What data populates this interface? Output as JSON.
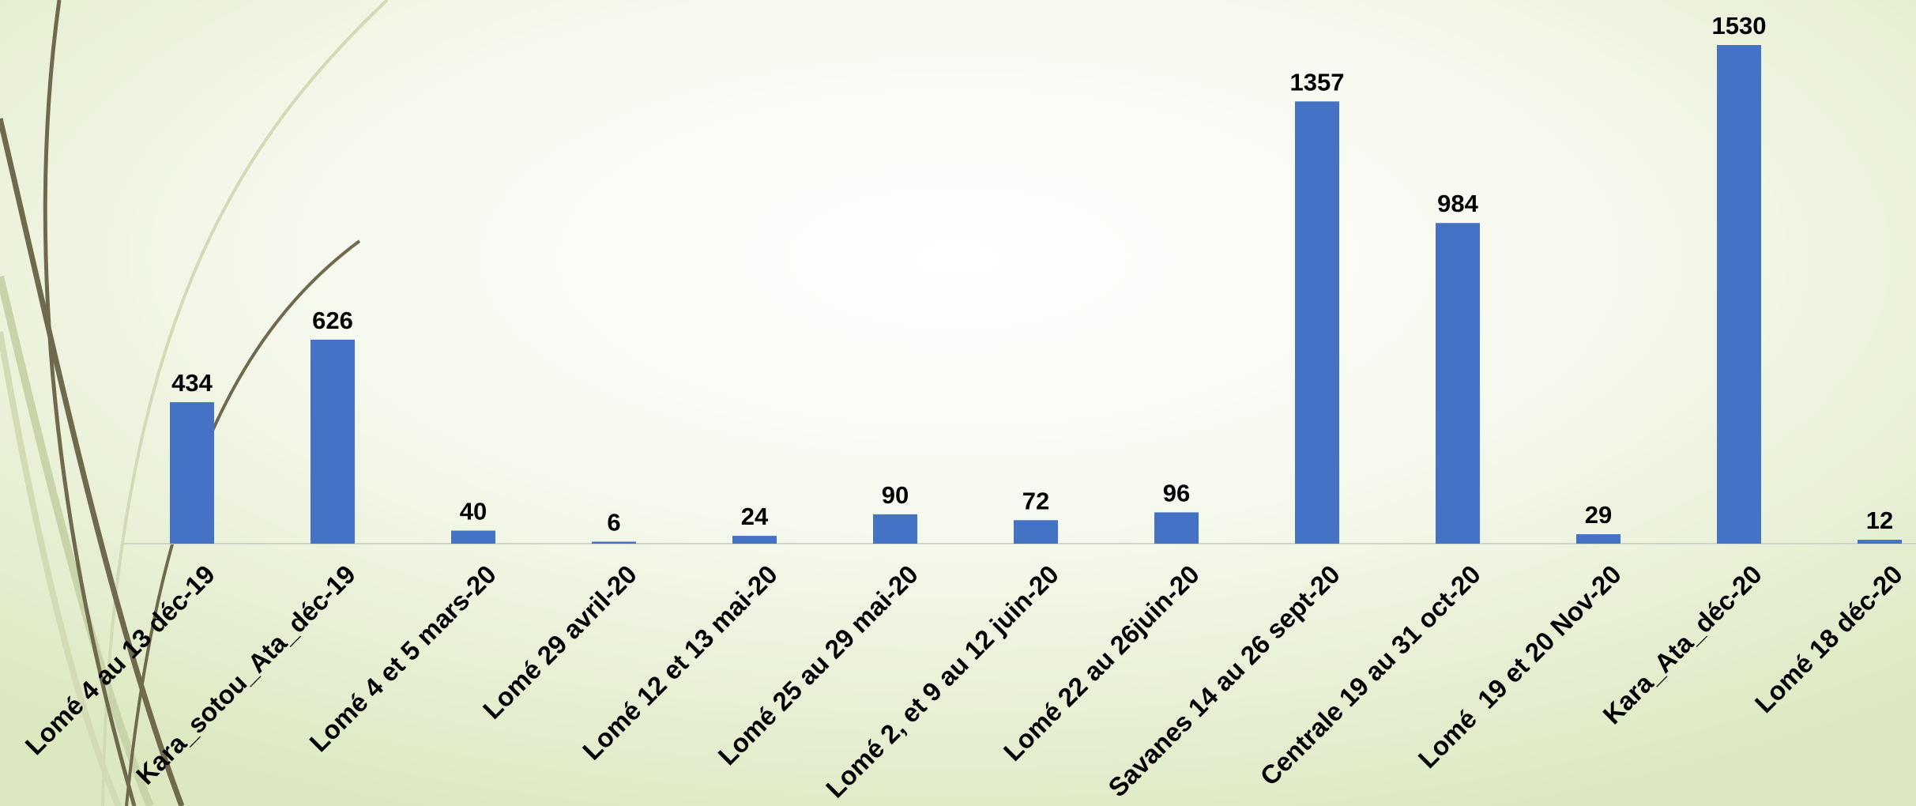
{
  "chart_data": {
    "type": "bar",
    "categories": [
      "Lomé 4 au 13 déc-19",
      "Kara_sotou_Ata_déc-19",
      "Lomé 4 et 5 mars-20",
      "Lomé 29 avril-20",
      "Lomé 12 et 13 mai-20",
      "Lomé 25 au 29 mai-20",
      "Lomé 2, et 9 au 12 juin-20",
      "Lomé 22 au 26juin-20",
      "Savanes 14 au 26 sept-20",
      "Centrale 19 au 31 oct-20",
      "Lomé  19 et 20 Nov-20",
      "Kara_Ata_déc-20",
      "Lomé 18 déc-20"
    ],
    "values": [
      434,
      626,
      40,
      6,
      24,
      90,
      72,
      96,
      1357,
      984,
      29,
      1530,
      12
    ],
    "color": "#4472c4"
  }
}
